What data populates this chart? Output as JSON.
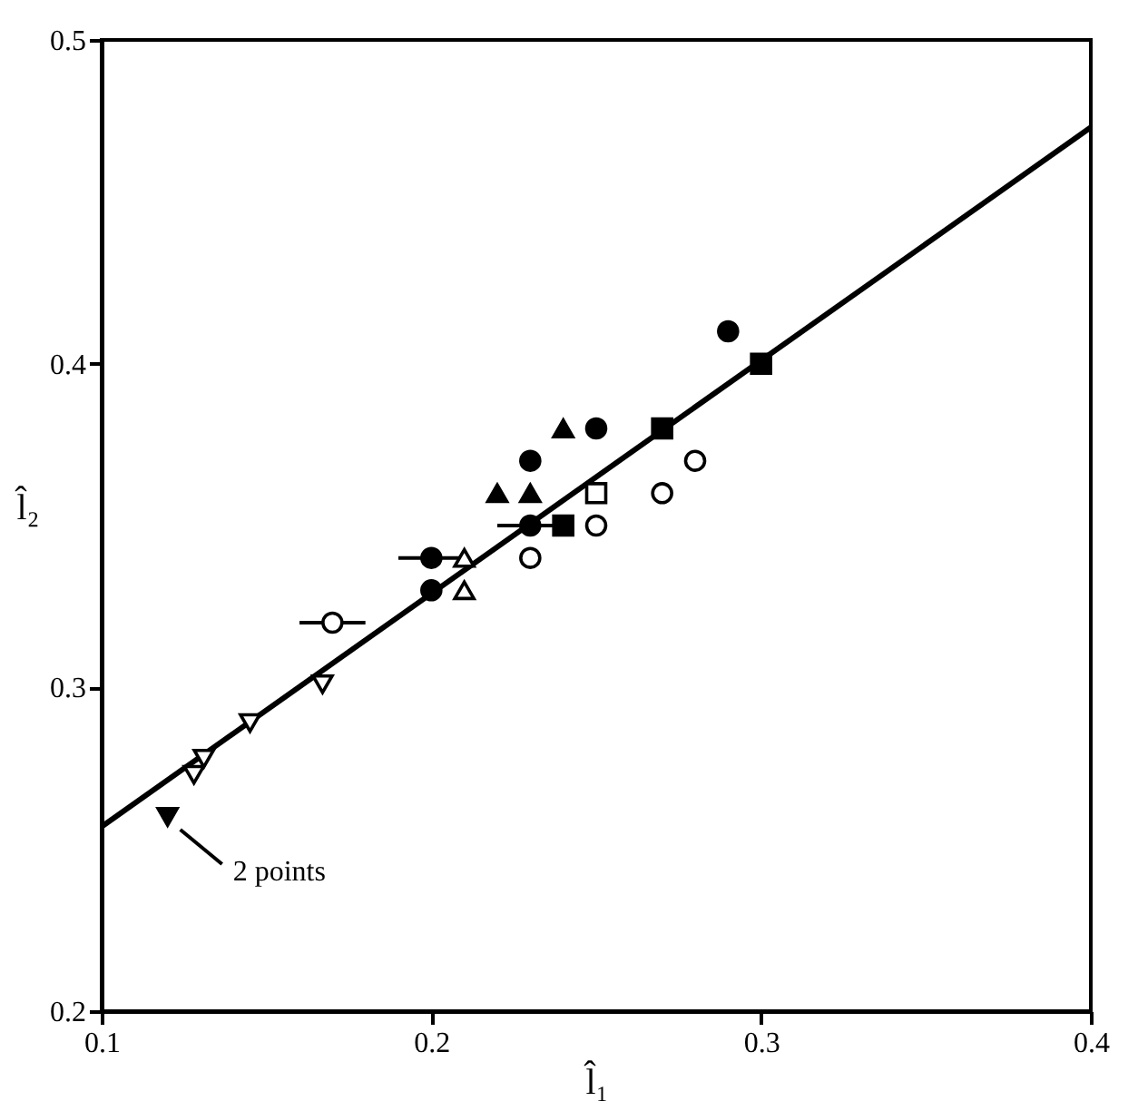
{
  "chart_data": {
    "type": "scatter",
    "xlabel": "l̂₁",
    "ylabel": "l̂₂",
    "xlim": [
      0.1,
      0.4
    ],
    "ylim": [
      0.2,
      0.5
    ],
    "xticks": [
      0.1,
      0.2,
      0.3,
      0.4
    ],
    "yticks": [
      0.2,
      0.3,
      0.4,
      0.5
    ],
    "grid": false,
    "series": [
      {
        "type": "line",
        "color": "#000000",
        "marker": "none",
        "line_style": "solid",
        "x": [
          0.1,
          0.4
        ],
        "values": [
          0.257,
          0.473
        ]
      },
      {
        "color": "#000000",
        "marker": "circle",
        "x": [
          0.2,
          0.2,
          0.23,
          0.23,
          0.25,
          0.29
        ],
        "values": [
          0.34,
          0.33,
          0.37,
          0.35,
          0.38,
          0.41
        ],
        "xerrors": [
          0.01,
          null,
          null,
          0.01,
          null,
          null
        ]
      },
      {
        "color": "#000000",
        "marker": "circle",
        "x": [
          0.17,
          0.23,
          0.25,
          0.27,
          0.28
        ],
        "values": [
          0.32,
          0.34,
          0.35,
          0.36,
          0.37
        ],
        "xerrors": [
          0.01,
          null,
          null,
          null,
          null
        ]
      },
      {
        "color": "#000000",
        "marker": "triangle",
        "x": [
          0.22,
          0.23,
          0.24
        ],
        "values": [
          0.36,
          0.36,
          0.38
        ]
      },
      {
        "color": "#000000",
        "marker": "triangle",
        "x": [
          0.21,
          0.21
        ],
        "values": [
          0.34,
          0.33
        ]
      },
      {
        "color": "#000000",
        "marker": "square",
        "x": [
          0.24,
          0.27,
          0.3
        ],
        "values": [
          0.35,
          0.38,
          0.4
        ]
      },
      {
        "color": "#000000",
        "marker": "square",
        "x": [
          0.25
        ],
        "values": [
          0.36
        ]
      },
      {
        "color": "#000000",
        "marker": "triangle",
        "x": [
          0.128,
          0.131,
          0.145,
          0.167
        ],
        "values": [
          0.273,
          0.278,
          0.289,
          0.301
        ]
      },
      {
        "color": "#000000",
        "marker": "triangle",
        "x": [
          0.12
        ],
        "values": [
          0.26
        ]
      }
    ],
    "annotations": [
      {
        "text": "2 points",
        "x": 0.12,
        "y": 0.26
      }
    ]
  }
}
